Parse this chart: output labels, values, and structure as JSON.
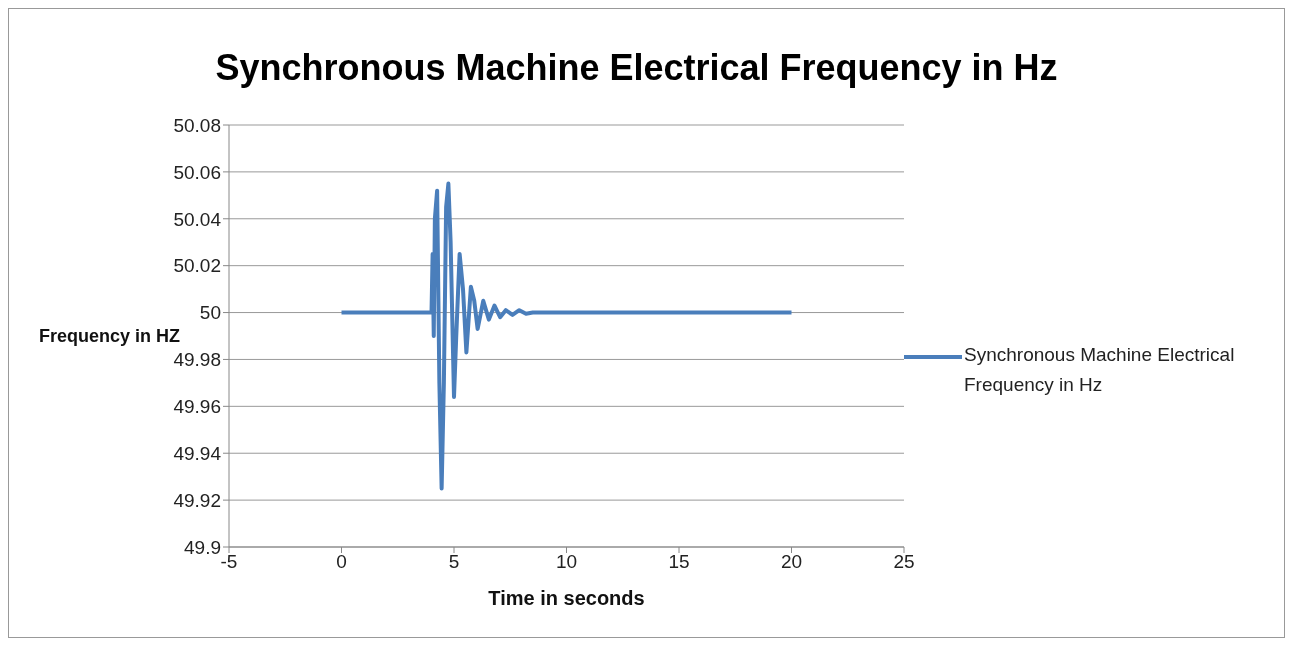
{
  "chart_data": {
    "type": "line",
    "title": "Synchronous Machine Electrical Frequency in Hz",
    "xlabel": "Time in seconds",
    "ylabel": "Frequency in HZ",
    "series": [
      {
        "name": "Synchronous Machine Electrical Frequency in Hz",
        "color": "#4a7ebb",
        "x": [
          0,
          4.0,
          4.05,
          4.1,
          4.15,
          4.25,
          4.35,
          4.45,
          4.55,
          4.65,
          4.75,
          4.85,
          5.0,
          5.1,
          5.25,
          5.4,
          5.55,
          5.75,
          5.9,
          6.05,
          6.3,
          6.55,
          6.8,
          7.05,
          7.3,
          7.6,
          7.9,
          8.2,
          8.5,
          20
        ],
        "values": [
          50,
          50,
          50.025,
          49.99,
          50.04,
          50.052,
          49.97,
          49.925,
          49.97,
          50.045,
          50.055,
          50.03,
          49.964,
          49.99,
          50.025,
          50.01,
          49.983,
          50.011,
          50.005,
          49.993,
          50.005,
          49.997,
          50.003,
          49.998,
          50.001,
          49.999,
          50.001,
          49.9995,
          50,
          50
        ]
      }
    ],
    "xlim": [
      -5,
      25
    ],
    "xticks": [
      -5,
      0,
      5,
      10,
      15,
      20,
      25
    ],
    "ylim": [
      49.9,
      50.08
    ],
    "yticks": [
      49.9,
      49.92,
      49.94,
      49.96,
      49.98,
      50,
      50.02,
      50.04,
      50.06,
      50.08
    ],
    "grid": "y",
    "legend": "right",
    "marker": "none",
    "line_style": "solid"
  }
}
